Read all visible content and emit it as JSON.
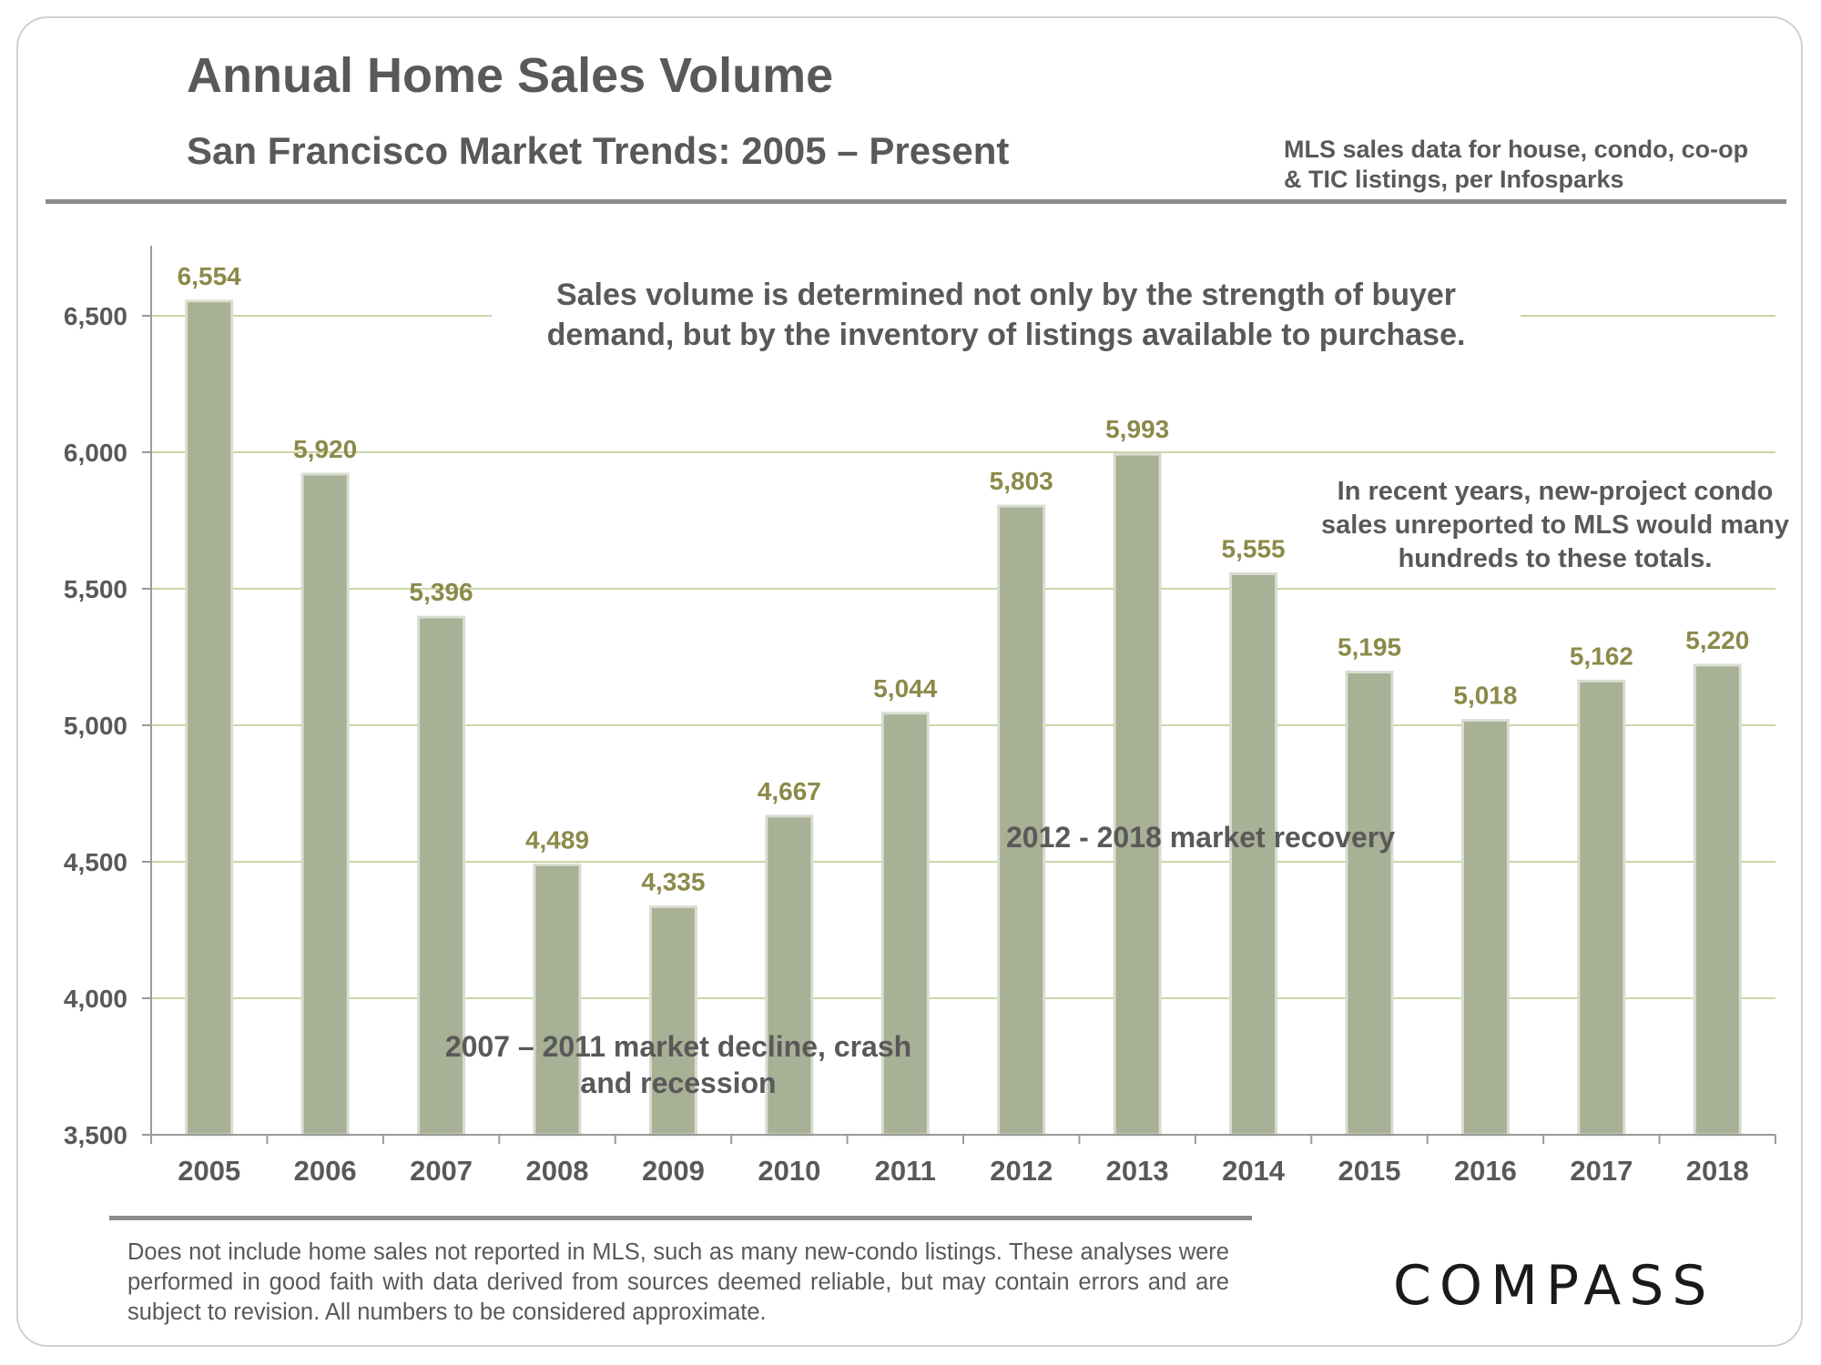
{
  "header": {
    "title": "Annual Home Sales Volume",
    "subtitle": "San Francisco Market Trends: 2005 – Present",
    "source_note": "MLS sales data for house, condo, co-op & TIC listings, per Infosparks"
  },
  "annotations": {
    "main": "Sales volume is determined not only by the strength of buyer demand, but by the inventory of listings available to purchase.",
    "condo": "In recent years, new-project condo sales unreported to MLS would many hundreds to these totals.",
    "recovery": "2012 - 2018 market recovery",
    "decline": "2007 – 2011 market decline, crash and recession"
  },
  "footer": {
    "disclaimer": "Does not include home sales not reported in MLS, such as many new-condo listings. These analyses were performed in good faith with data derived from sources deemed reliable, but may contain errors and are subject to revision. All numbers to be considered  approximate.",
    "logo_text": "COMPASS"
  },
  "colors": {
    "bar": "#a8b095",
    "bar_edge": "#d9ddd0",
    "value_label": "#8c8a4a",
    "gridline": "#b9c98a",
    "axis_text": "#595959"
  },
  "chart_data": {
    "type": "bar",
    "title": "Annual Home Sales Volume",
    "xlabel": "",
    "ylabel": "",
    "categories": [
      "2005",
      "2006",
      "2007",
      "2008",
      "2009",
      "2010",
      "2011",
      "2012",
      "2013",
      "2014",
      "2015",
      "2016",
      "2017",
      "2018"
    ],
    "values": [
      6554,
      5920,
      5396,
      4489,
      4335,
      4667,
      5044,
      5803,
      5993,
      5555,
      5195,
      5018,
      5162,
      5220
    ],
    "value_labels": [
      "6,554",
      "5,920",
      "5,396",
      "4,489",
      "4,335",
      "4,667",
      "5,044",
      "5,803",
      "5,993",
      "5,555",
      "5,195",
      "5,018",
      "5,162",
      "5,220"
    ],
    "ylim": [
      3500,
      6750
    ],
    "yticks": [
      3500,
      4000,
      4500,
      5000,
      5500,
      6000,
      6500
    ],
    "ytick_labels": [
      "3,500",
      "4,000",
      "4,500",
      "5,000",
      "5,500",
      "6,000",
      "6,500"
    ],
    "grid": true
  }
}
